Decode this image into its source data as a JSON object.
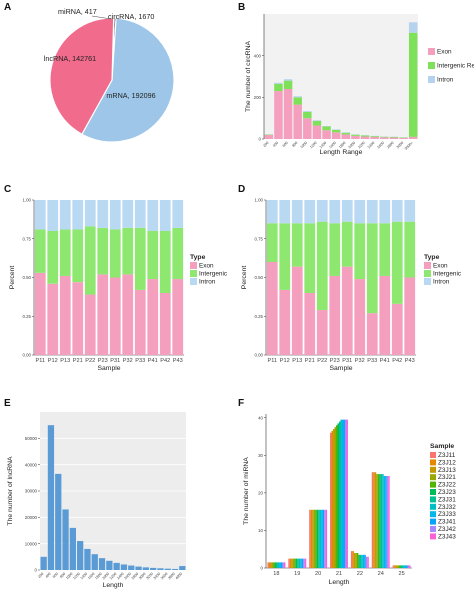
{
  "chart_data": [
    {
      "id": "A",
      "type": "pie",
      "labels": [
        {
          "name": "miRNA",
          "value": 417,
          "text": "miRNA, 417",
          "color": "#f4e9a6"
        },
        {
          "name": "circRNA",
          "value": 1670,
          "text": "circRNA, 1670",
          "color": "#2b2b2b"
        },
        {
          "name": "mRNA",
          "value": 192096,
          "text": "mRNA, 192096",
          "color": "#9dc6e8"
        },
        {
          "name": "lncRNA",
          "value": 142761,
          "text": "lncRNA, 142761",
          "color": "#f06b8c"
        }
      ]
    },
    {
      "id": "B",
      "type": "bar",
      "stacked": true,
      "xlabel": "Length Range",
      "ylabel": "The number of circRNA",
      "ylim": [
        0,
        600
      ],
      "yticks": [
        0,
        200,
        400
      ],
      "categories": [
        "200",
        "400",
        "600",
        "800",
        "1000",
        "1200",
        "1400",
        "1600",
        "1800",
        "2000",
        "2200",
        "2400",
        "2600",
        "2800",
        "3000",
        "3000+"
      ],
      "series": [
        {
          "name": "Exon",
          "color": "#f59fbf",
          "values": [
            20,
            230,
            240,
            165,
            100,
            65,
            42,
            32,
            22,
            15,
            12,
            10,
            8,
            7,
            5,
            10
          ]
        },
        {
          "name": "Intergenic Region",
          "color": "#7fe05a",
          "values": [
            2,
            35,
            40,
            35,
            30,
            22,
            18,
            12,
            8,
            6,
            5,
            4,
            3,
            3,
            2,
            500
          ]
        },
        {
          "name": "Intron",
          "color": "#b5d3ee",
          "values": [
            0,
            5,
            7,
            5,
            4,
            3,
            2,
            2,
            2,
            1,
            1,
            1,
            1,
            1,
            1,
            50
          ]
        }
      ]
    },
    {
      "id": "C",
      "type": "bar",
      "stacked": true,
      "xlabel": "Sample",
      "ylabel": "Percent",
      "legend_title": "Type",
      "ylim": [
        0,
        1
      ],
      "yticks": [
        "0.00",
        "0.25",
        "0.50",
        "0.75",
        "1.00"
      ],
      "categories": [
        "P11",
        "P12",
        "P13",
        "P21",
        "P22",
        "P23",
        "P31",
        "P32",
        "P33",
        "P41",
        "P42",
        "P43"
      ],
      "series": [
        {
          "name": "Exon",
          "color": "#f59fbf",
          "values": [
            0.53,
            0.46,
            0.51,
            0.47,
            0.39,
            0.52,
            0.5,
            0.52,
            0.42,
            0.49,
            0.4,
            0.49
          ]
        },
        {
          "name": "Intergenic",
          "color": "#8ee870",
          "values": [
            0.28,
            0.34,
            0.3,
            0.34,
            0.44,
            0.3,
            0.31,
            0.3,
            0.4,
            0.31,
            0.4,
            0.33
          ]
        },
        {
          "name": "Intron",
          "color": "#b9d8f2",
          "values": [
            0.19,
            0.2,
            0.19,
            0.19,
            0.17,
            0.18,
            0.19,
            0.18,
            0.18,
            0.2,
            0.2,
            0.18
          ]
        }
      ]
    },
    {
      "id": "D",
      "type": "bar",
      "stacked": true,
      "xlabel": "Sample",
      "ylabel": "Percent",
      "legend_title": "Type",
      "ylim": [
        0,
        1
      ],
      "yticks": [
        "0.00",
        "0.25",
        "0.50",
        "0.75",
        "1.00"
      ],
      "categories": [
        "P11",
        "P12",
        "P13",
        "P21",
        "P22",
        "P23",
        "P31",
        "P32",
        "P33",
        "P41",
        "P42",
        "P43"
      ],
      "series": [
        {
          "name": "Exon",
          "color": "#f59fbf",
          "values": [
            0.6,
            0.42,
            0.57,
            0.4,
            0.29,
            0.51,
            0.57,
            0.49,
            0.27,
            0.51,
            0.33,
            0.5
          ]
        },
        {
          "name": "Intergenic",
          "color": "#8ee870",
          "values": [
            0.25,
            0.43,
            0.28,
            0.45,
            0.57,
            0.34,
            0.29,
            0.36,
            0.58,
            0.34,
            0.53,
            0.36
          ]
        },
        {
          "name": "Intron",
          "color": "#b9d8f2",
          "values": [
            0.15,
            0.15,
            0.15,
            0.15,
            0.14,
            0.15,
            0.14,
            0.15,
            0.15,
            0.15,
            0.14,
            0.14
          ]
        }
      ]
    },
    {
      "id": "E",
      "type": "bar",
      "xlabel": "Length",
      "ylabel": "The number of lncRNA",
      "ylim": [
        0,
        60000
      ],
      "yticks": [
        0,
        10000,
        20000,
        30000,
        40000,
        50000
      ],
      "categories": [
        "200",
        "400",
        "600",
        "800",
        "1000",
        "1200",
        "1400",
        "1600",
        "1800",
        "2000",
        "2200",
        "2400",
        "2600",
        "2800",
        "3000",
        "3200",
        "3400",
        "3600",
        "3800",
        "4000"
      ],
      "color": "#5b9bd5",
      "values": [
        5000,
        55000,
        36500,
        23000,
        16000,
        11000,
        8000,
        6000,
        4500,
        3500,
        2700,
        2100,
        1700,
        1300,
        1000,
        800,
        650,
        500,
        400,
        1500
      ]
    },
    {
      "id": "F",
      "type": "bar",
      "grouped": true,
      "xlabel": "Length",
      "ylabel": "The number of miRNA",
      "legend_title": "Sample",
      "ylim": [
        0,
        41
      ],
      "yticks": [
        0,
        10,
        20,
        30,
        40
      ],
      "categories": [
        "18",
        "19",
        "20",
        "21",
        "22",
        "24",
        "25"
      ],
      "series": [
        {
          "name": "Z3J11",
          "color": "#f8766d",
          "values": [
            1.5,
            2.5,
            15.5,
            36,
            4.5,
            25.5,
            0.7
          ]
        },
        {
          "name": "Z3J12",
          "color": "#e38900",
          "values": [
            1.5,
            2.5,
            15.5,
            36.5,
            4.5,
            25.5,
            0.7
          ]
        },
        {
          "name": "Z3J13",
          "color": "#c49a00",
          "values": [
            1.5,
            2.5,
            15.5,
            37,
            4.0,
            25.5,
            0.7
          ]
        },
        {
          "name": "Z3J21",
          "color": "#99a800",
          "values": [
            1.5,
            2.5,
            15.5,
            37.5,
            4.0,
            25,
            0.7
          ]
        },
        {
          "name": "Z3J22",
          "color": "#53b400",
          "values": [
            1.5,
            2.5,
            15.5,
            38,
            4.0,
            25,
            0.7
          ]
        },
        {
          "name": "Z3J23",
          "color": "#00bc56",
          "values": [
            1.5,
            2.5,
            15.5,
            38.5,
            3.5,
            25,
            0.7
          ]
        },
        {
          "name": "Z3J31",
          "color": "#00c094",
          "values": [
            1.5,
            2.5,
            15.5,
            39,
            3.5,
            25,
            0.7
          ]
        },
        {
          "name": "Z3J32",
          "color": "#00bfc4",
          "values": [
            1.5,
            2.5,
            15.5,
            39.5,
            3.5,
            25,
            0.7
          ]
        },
        {
          "name": "Z3J33",
          "color": "#00b6eb",
          "values": [
            1.5,
            2.5,
            15.5,
            39.5,
            3.5,
            24.5,
            0.7
          ]
        },
        {
          "name": "Z3J41",
          "color": "#06a4ff",
          "values": [
            1.5,
            2.5,
            15.5,
            39.5,
            3.5,
            24.5,
            0.7
          ]
        },
        {
          "name": "Z3J42",
          "color": "#a58aff",
          "values": [
            1.5,
            2.5,
            15.5,
            39.5,
            3.0,
            24.5,
            0.7
          ]
        },
        {
          "name": "Z3J43",
          "color": "#fb61d7",
          "values": [
            1.5,
            2.5,
            15.5,
            39.5,
            3.0,
            24.5,
            0.7
          ]
        }
      ]
    }
  ]
}
